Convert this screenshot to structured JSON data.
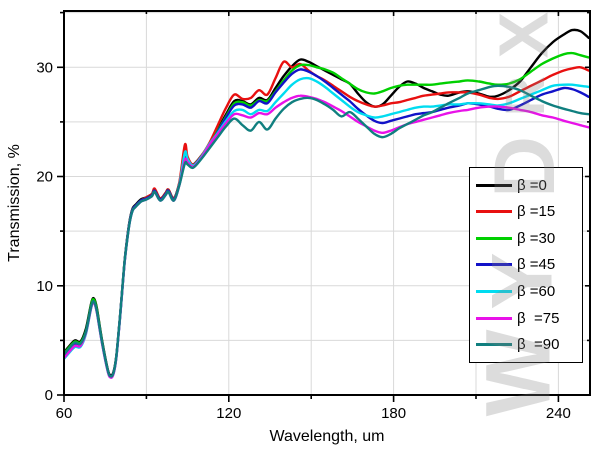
{
  "axes": {
    "xlabel": "Wavelength, um",
    "ylabel": "Transmission, %"
  },
  "watermark": {
    "letters": [
      "X",
      "R",
      "D",
      "Y",
      "W"
    ]
  },
  "chart_data": {
    "type": "line",
    "title": "",
    "xlabel": "Wavelength, um",
    "ylabel": "Transmission, %",
    "xlim": [
      60,
      251.5
    ],
    "ylim": [
      0,
      35.15
    ],
    "grid": true,
    "grid_color": "#d9d9d9",
    "legend_position": "right-middle",
    "x_major_ticks": [
      60,
      120,
      180,
      240
    ],
    "x_tick_labels": [
      "60",
      "120",
      "180",
      "240"
    ],
    "x_minor_ticks": [
      90,
      150,
      210
    ],
    "y_major_ticks": [
      0,
      10,
      20,
      30
    ],
    "y_tick_labels": [
      "0",
      "10",
      "20",
      "30"
    ],
    "y_minor_ticks": [
      5,
      15,
      25,
      35
    ],
    "x_grid_lines": [
      90,
      120,
      150,
      180,
      210,
      240
    ],
    "y_grid_lines": [
      5,
      10,
      15,
      20,
      25,
      30,
      35
    ],
    "x": [
      60,
      62,
      64,
      66,
      68,
      70,
      71,
      72,
      74,
      76,
      77,
      78,
      79,
      80,
      81,
      82,
      83,
      84,
      85,
      86,
      88,
      90,
      92,
      93,
      95,
      97,
      98,
      100,
      102,
      104,
      105,
      107,
      110,
      113,
      116,
      119,
      122,
      125,
      128,
      131,
      134,
      137,
      140,
      143,
      146,
      149,
      152,
      155,
      158,
      161,
      164,
      167,
      170,
      173,
      176,
      179,
      182,
      185,
      188,
      191,
      194,
      197,
      200,
      204,
      207,
      211,
      215,
      218,
      222,
      226,
      230,
      234,
      238,
      242,
      245,
      248,
      251
    ],
    "series": [
      {
        "name": "β =0",
        "color": "#000000",
        "values": [
          3.9,
          4.5,
          5.0,
          4.9,
          6.1,
          8.5,
          8.8,
          7.9,
          4.8,
          2.3,
          1.8,
          2.1,
          3.5,
          6.1,
          9.1,
          12.1,
          14.4,
          16.1,
          17.1,
          17.4,
          17.9,
          18.1,
          18.4,
          18.8,
          18.0,
          18.5,
          18.8,
          18.0,
          19.4,
          21.7,
          21.5,
          21.1,
          21.9,
          22.9,
          24.3,
          25.7,
          26.9,
          26.9,
          26.6,
          27.2,
          27.0,
          28.1,
          29.2,
          30.1,
          30.7,
          30.5,
          30.1,
          29.7,
          29.3,
          28.9,
          28.5,
          27.6,
          26.8,
          26.4,
          26.6,
          27.4,
          28.2,
          28.7,
          28.5,
          28.1,
          27.8,
          27.5,
          27.4,
          27.7,
          27.8,
          27.6,
          27.3,
          27.4,
          27.9,
          28.7,
          30.0,
          31.3,
          32.3,
          33.0,
          33.4,
          33.3,
          32.7
        ]
      },
      {
        "name": "β =15",
        "color": "#e81010",
        "values": [
          3.5,
          4.1,
          4.6,
          4.5,
          5.7,
          8.3,
          8.6,
          7.7,
          4.6,
          2.2,
          1.7,
          2.0,
          3.4,
          6.0,
          9.0,
          12.0,
          14.3,
          16.0,
          17.0,
          17.3,
          17.8,
          18.1,
          18.4,
          18.9,
          18.0,
          18.5,
          18.8,
          18.0,
          19.5,
          22.9,
          21.8,
          21.1,
          21.9,
          23.1,
          24.7,
          26.3,
          27.5,
          27.1,
          27.2,
          27.9,
          27.5,
          29.0,
          30.5,
          30.0,
          30.3,
          29.7,
          29.2,
          28.8,
          28.3,
          27.8,
          27.3,
          26.9,
          26.6,
          26.4,
          26.5,
          26.7,
          26.8,
          27.0,
          27.2,
          27.4,
          27.5,
          27.6,
          27.7,
          27.7,
          27.7,
          27.5,
          27.2,
          27.1,
          27.3,
          27.8,
          28.3,
          28.8,
          29.3,
          29.7,
          29.9,
          30.0,
          29.7
        ]
      },
      {
        "name": "β =30",
        "color": "#00d000",
        "values": [
          3.8,
          4.4,
          4.9,
          4.8,
          5.9,
          8.4,
          8.7,
          7.8,
          4.7,
          2.2,
          1.7,
          2.0,
          3.4,
          6.0,
          9.0,
          12.0,
          14.3,
          16.0,
          17.0,
          17.3,
          17.8,
          18.0,
          18.3,
          18.7,
          17.9,
          18.4,
          18.7,
          17.9,
          19.3,
          21.6,
          21.4,
          21.0,
          21.8,
          22.8,
          24.2,
          25.5,
          26.7,
          26.8,
          26.5,
          27.0,
          26.9,
          27.8,
          28.8,
          29.7,
          30.2,
          30.2,
          30.0,
          29.8,
          29.5,
          29.0,
          28.5,
          28.0,
          27.7,
          27.6,
          27.8,
          28.1,
          28.3,
          28.4,
          28.4,
          28.4,
          28.4,
          28.5,
          28.6,
          28.7,
          28.8,
          28.7,
          28.5,
          28.4,
          28.5,
          28.9,
          29.6,
          30.3,
          30.8,
          31.2,
          31.3,
          31.1,
          30.9
        ]
      },
      {
        "name": "β =45",
        "color": "#1212c8",
        "values": [
          3.6,
          4.2,
          4.7,
          4.6,
          5.8,
          8.2,
          8.5,
          7.6,
          4.6,
          2.2,
          1.7,
          2.0,
          3.4,
          6.0,
          9.0,
          12.0,
          14.3,
          16.0,
          17.0,
          17.3,
          17.8,
          18.0,
          18.3,
          18.7,
          17.9,
          18.4,
          18.7,
          17.9,
          19.3,
          21.6,
          21.4,
          21.0,
          21.8,
          22.8,
          24.1,
          25.4,
          26.5,
          26.6,
          26.3,
          26.9,
          26.7,
          27.7,
          28.6,
          29.4,
          29.8,
          29.6,
          29.2,
          28.7,
          28.1,
          27.5,
          26.9,
          26.2,
          25.6,
          25.1,
          24.9,
          25.1,
          25.3,
          25.5,
          25.7,
          25.8,
          25.9,
          26.1,
          26.3,
          26.5,
          26.7,
          26.6,
          26.4,
          26.2,
          26.1,
          26.5,
          27.0,
          27.5,
          27.8,
          28.1,
          28.0,
          27.7,
          27.3
        ]
      },
      {
        "name": "β =60",
        "color": "#00dcf0",
        "values": [
          3.3,
          3.9,
          4.4,
          4.4,
          5.6,
          8.1,
          8.4,
          7.5,
          4.5,
          2.1,
          1.6,
          1.9,
          3.3,
          5.9,
          8.9,
          11.9,
          14.2,
          15.9,
          16.9,
          17.2,
          17.7,
          17.9,
          18.2,
          18.6,
          17.8,
          18.3,
          18.6,
          17.8,
          19.3,
          22.2,
          21.6,
          21.0,
          21.8,
          23.0,
          24.0,
          25.1,
          26.0,
          26.1,
          25.7,
          26.1,
          26.0,
          26.8,
          27.6,
          28.4,
          28.9,
          29.0,
          28.7,
          28.2,
          27.6,
          27.0,
          26.4,
          25.9,
          25.6,
          25.4,
          25.5,
          25.7,
          25.9,
          26.1,
          26.3,
          26.4,
          26.4,
          26.5,
          26.6,
          26.6,
          26.7,
          26.7,
          26.6,
          26.5,
          26.7,
          27.1,
          27.5,
          27.9,
          28.3,
          28.4,
          28.4,
          28.3,
          28.2
        ]
      },
      {
        "name": "β  =75",
        "color": "#e812e8",
        "values": [
          3.4,
          4.0,
          4.5,
          4.5,
          5.7,
          8.1,
          8.4,
          7.5,
          4.5,
          2.1,
          1.6,
          1.9,
          3.3,
          5.9,
          8.9,
          11.9,
          14.2,
          15.9,
          16.9,
          17.2,
          17.7,
          17.9,
          18.2,
          18.6,
          17.8,
          18.3,
          18.6,
          17.8,
          19.2,
          21.5,
          21.3,
          20.9,
          21.7,
          22.9,
          23.9,
          24.9,
          25.7,
          25.6,
          25.4,
          25.8,
          25.7,
          26.3,
          26.8,
          27.2,
          27.4,
          27.3,
          27.1,
          26.8,
          26.4,
          26.0,
          25.5,
          25.0,
          24.6,
          24.2,
          24.0,
          24.2,
          24.5,
          24.8,
          25.0,
          25.2,
          25.4,
          25.6,
          25.8,
          26.0,
          26.1,
          26.3,
          26.4,
          26.4,
          26.3,
          26.1,
          25.9,
          25.6,
          25.4,
          25.1,
          24.9,
          24.7,
          24.5
        ]
      },
      {
        "name": "β  =90",
        "color": "#107f7f",
        "values": [
          3.7,
          4.3,
          4.8,
          4.7,
          5.8,
          8.2,
          8.5,
          7.6,
          4.6,
          2.2,
          1.7,
          2.0,
          3.4,
          6.0,
          9.0,
          12.0,
          14.2,
          15.9,
          16.9,
          17.2,
          17.7,
          17.9,
          18.2,
          18.6,
          17.8,
          18.3,
          18.6,
          17.8,
          19.2,
          21.2,
          21.1,
          20.8,
          21.6,
          22.6,
          23.6,
          24.6,
          25.3,
          24.7,
          24.2,
          25.0,
          24.3,
          25.3,
          26.2,
          26.8,
          27.1,
          27.2,
          27.0,
          26.6,
          26.1,
          25.5,
          25.9,
          25.3,
          24.6,
          23.9,
          23.6,
          23.9,
          24.4,
          24.8,
          25.2,
          25.6,
          25.9,
          26.3,
          26.7,
          27.2,
          27.6,
          27.9,
          28.2,
          28.3,
          28.2,
          27.9,
          27.4,
          26.9,
          26.5,
          26.2,
          26.0,
          25.8,
          25.7
        ]
      }
    ]
  }
}
